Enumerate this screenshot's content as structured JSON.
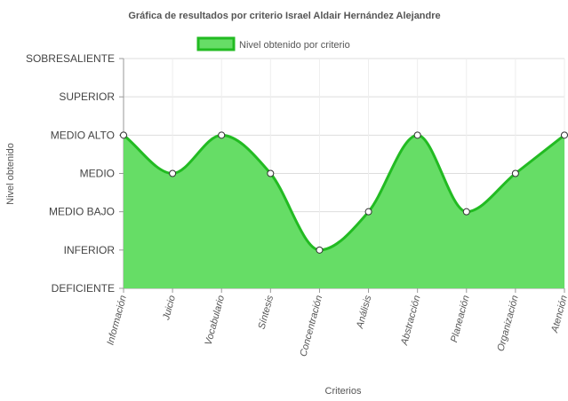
{
  "chart_data": {
    "type": "area",
    "title": "Gráfica de resultados por criterio Israel Aldair Hernández Alejandre",
    "xlabel": "Criterios",
    "ylabel": "Nivel obtenido",
    "categories": [
      "Información",
      "Juicio",
      "Vocabulario",
      "Síntesis",
      "Concentración",
      "Análisis",
      "Abstracción",
      "Planeación",
      "Organización",
      "Atención"
    ],
    "y_levels": [
      "DEFICIENTE",
      "INFERIOR",
      "MEDIO BAJO",
      "MEDIO",
      "MEDIO ALTO",
      "SUPERIOR",
      "SOBRESALIENTE"
    ],
    "ylim": [
      0,
      6
    ],
    "series": [
      {
        "name": "Nivel obtenido por criterio",
        "values": [
          4,
          3,
          4,
          3,
          1,
          2,
          4,
          2,
          3,
          4
        ]
      }
    ],
    "grid": true,
    "legend_position": "top",
    "colors": {
      "fill": "#66dd66",
      "line": "#22bb22",
      "grid": "#dddddd",
      "text": "#555555"
    }
  }
}
